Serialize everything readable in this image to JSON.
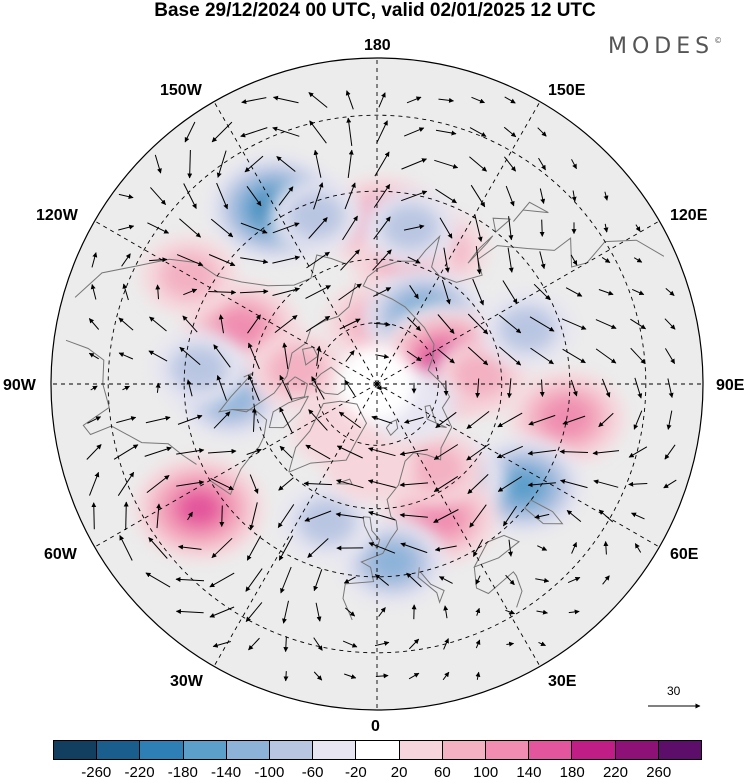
{
  "title": "Base 29/12/2024 00 UTC, valid 02/01/2025 12 UTC",
  "brand": {
    "name": "MODES",
    "mark": "©"
  },
  "longitude_labels": [
    "180",
    "150E",
    "120E",
    "90E",
    "60E",
    "30E",
    "0",
    "30W",
    "60W",
    "90W",
    "120W",
    "150W"
  ],
  "wind_reference": {
    "value": "30"
  },
  "colorbar": {
    "ticks": [
      "-260",
      "-220",
      "-180",
      "-140",
      "-100",
      "-60",
      "-20",
      "20",
      "60",
      "100",
      "140",
      "180",
      "220",
      "260"
    ],
    "colors": [
      "#123f60",
      "#1a5e8e",
      "#2e7fb5",
      "#5c9fcb",
      "#8db3d9",
      "#b9c6e2",
      "#e6e5f1",
      "#ffffff",
      "#f6d6dc",
      "#f3b1c2",
      "#f08db0",
      "#e3559c",
      "#c11d86",
      "#8e1178",
      "#5d0e6a"
    ]
  },
  "map": {
    "projection": "north-polar-stereographic",
    "background_color": "#ececec",
    "land_outline_color": "#777777",
    "anomaly_blobs": [
      {
        "lat": 55,
        "lon": 155,
        "value": 60
      },
      {
        "lat": 52,
        "lon": 178,
        "value": 120
      },
      {
        "lat": 60,
        "lon": 167,
        "value": 80
      },
      {
        "lat": 75,
        "lon": 180,
        "value": 80
      },
      {
        "lat": 43,
        "lon": -150,
        "value": -180
      },
      {
        "lat": 48,
        "lon": -160,
        "value": -60
      },
      {
        "lat": 52,
        "lon": 168,
        "value": -60
      },
      {
        "lat": 55,
        "lon": -112,
        "value": 120
      },
      {
        "lat": 40,
        "lon": -120,
        "value": 60
      },
      {
        "lat": 70,
        "lon": 145,
        "value": -140
      },
      {
        "lat": 72,
        "lon": 125,
        "value": -60
      },
      {
        "lat": 72,
        "lon": 105,
        "value": 180
      },
      {
        "lat": 65,
        "lon": 95,
        "value": 60
      },
      {
        "lat": 52,
        "lon": 110,
        "value": -60
      },
      {
        "lat": 45,
        "lon": 80,
        "value": 120
      },
      {
        "lat": 48,
        "lon": 55,
        "value": -140
      },
      {
        "lat": 60,
        "lon": 40,
        "value": -60
      },
      {
        "lat": 55,
        "lon": 25,
        "value": 120
      },
      {
        "lat": 65,
        "lon": 35,
        "value": 60
      },
      {
        "lat": 48,
        "lon": 5,
        "value": -100
      },
      {
        "lat": 55,
        "lon": -20,
        "value": -60
      },
      {
        "lat": 70,
        "lon": -5,
        "value": 40
      },
      {
        "lat": 40,
        "lon": -55,
        "value": 160
      },
      {
        "lat": 55,
        "lon": -85,
        "value": -100
      },
      {
        "lat": 48,
        "lon": -95,
        "value": -60
      },
      {
        "lat": 70,
        "lon": -100,
        "value": 60
      },
      {
        "lat": 75,
        "lon": -40,
        "value": 40
      },
      {
        "lat": 80,
        "lon": 60,
        "value": -40
      }
    ]
  }
}
